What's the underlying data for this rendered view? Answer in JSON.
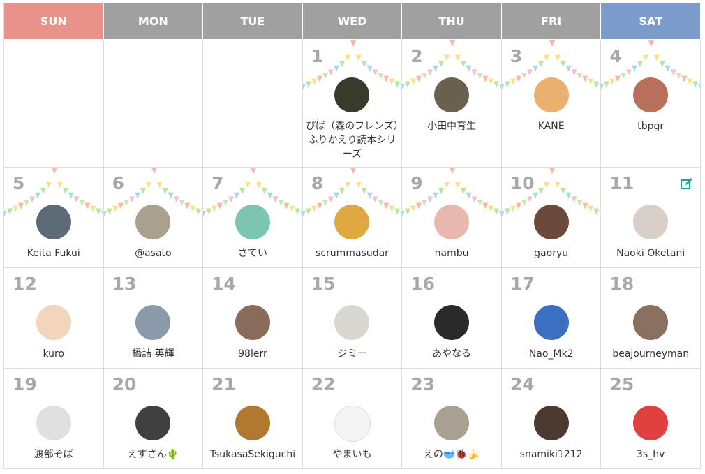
{
  "weekdays": [
    "SUN",
    "MON",
    "TUE",
    "WED",
    "THU",
    "FRI",
    "SAT"
  ],
  "weeks": [
    [
      null,
      null,
      null,
      {
        "day": 1,
        "name": "ぴば（森のフレンズ）ふりかえり読本シリーズ"
      },
      {
        "day": 2,
        "name": "小田中育生"
      },
      {
        "day": 3,
        "name": "KANE"
      },
      {
        "day": 4,
        "name": "tbpgr"
      }
    ],
    [
      {
        "day": 5,
        "name": "Keita Fukui"
      },
      {
        "day": 6,
        "name": "@asato"
      },
      {
        "day": 7,
        "name": "さてい"
      },
      {
        "day": 8,
        "name": "scrummasudar"
      },
      {
        "day": 9,
        "name": "nambu"
      },
      {
        "day": 10,
        "name": "gaoryu"
      },
      {
        "day": 11,
        "name": "Naoki Oketani"
      }
    ],
    [
      {
        "day": 12,
        "name": "kuro"
      },
      {
        "day": 13,
        "name": "橋詰 英輝"
      },
      {
        "day": 14,
        "name": "98lerr"
      },
      {
        "day": 15,
        "name": "ジミー"
      },
      {
        "day": 16,
        "name": "あやなる"
      },
      {
        "day": 17,
        "name": "Nao_Mk2"
      },
      {
        "day": 18,
        "name": "beajourneyman"
      }
    ],
    [
      {
        "day": 19,
        "name": "渡部そば"
      },
      {
        "day": 20,
        "name": "えすさん🌵"
      },
      {
        "day": 21,
        "name": "TsukasaSekiguchi"
      },
      {
        "day": 22,
        "name": "やまいも"
      },
      {
        "day": 23,
        "name": "えの🥣🐞🍌"
      },
      {
        "day": 24,
        "name": "snamiki1212"
      },
      {
        "day": 25,
        "name": "3s_hv"
      }
    ]
  ]
}
